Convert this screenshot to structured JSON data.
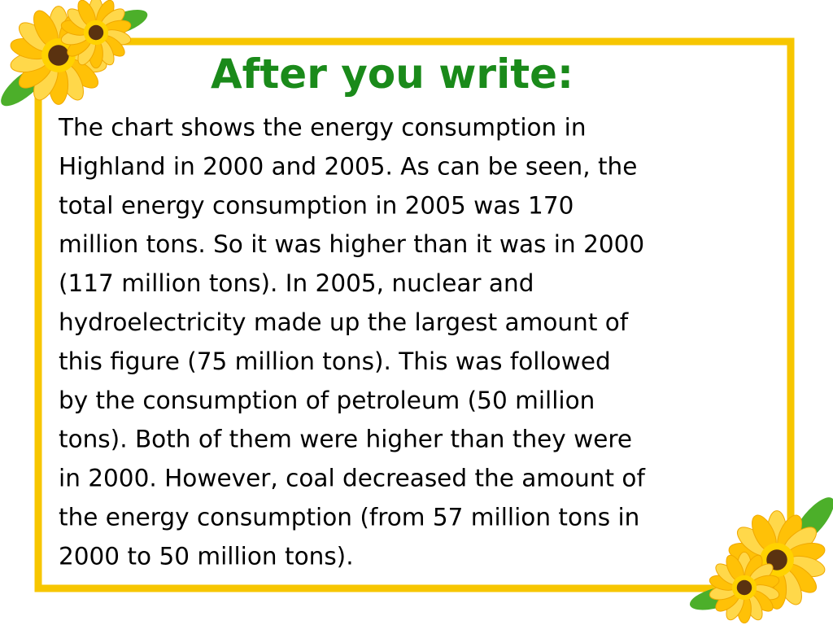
{
  "title": "After you write:",
  "body": {
    "lines": [
      "The chart shows the energy consumption in",
      "Highland in 2000 and 2005. As can be seen, the",
      "total energy consumption in 2005 was 170",
      "million tons. So it was higher than it was in 2000",
      "(117 million tons). In 2005, nuclear and",
      "hydroelectricity made up the largest amount of",
      "this figure (75 million tons). This was followed",
      "by the consumption of petroleum (50 million",
      "tons). Both of them were higher than they were",
      "in 2000. However, coal decreased the amount of",
      "the energy consumption (from 57 million tons in",
      "2000 to 50 million tons)."
    ]
  }
}
